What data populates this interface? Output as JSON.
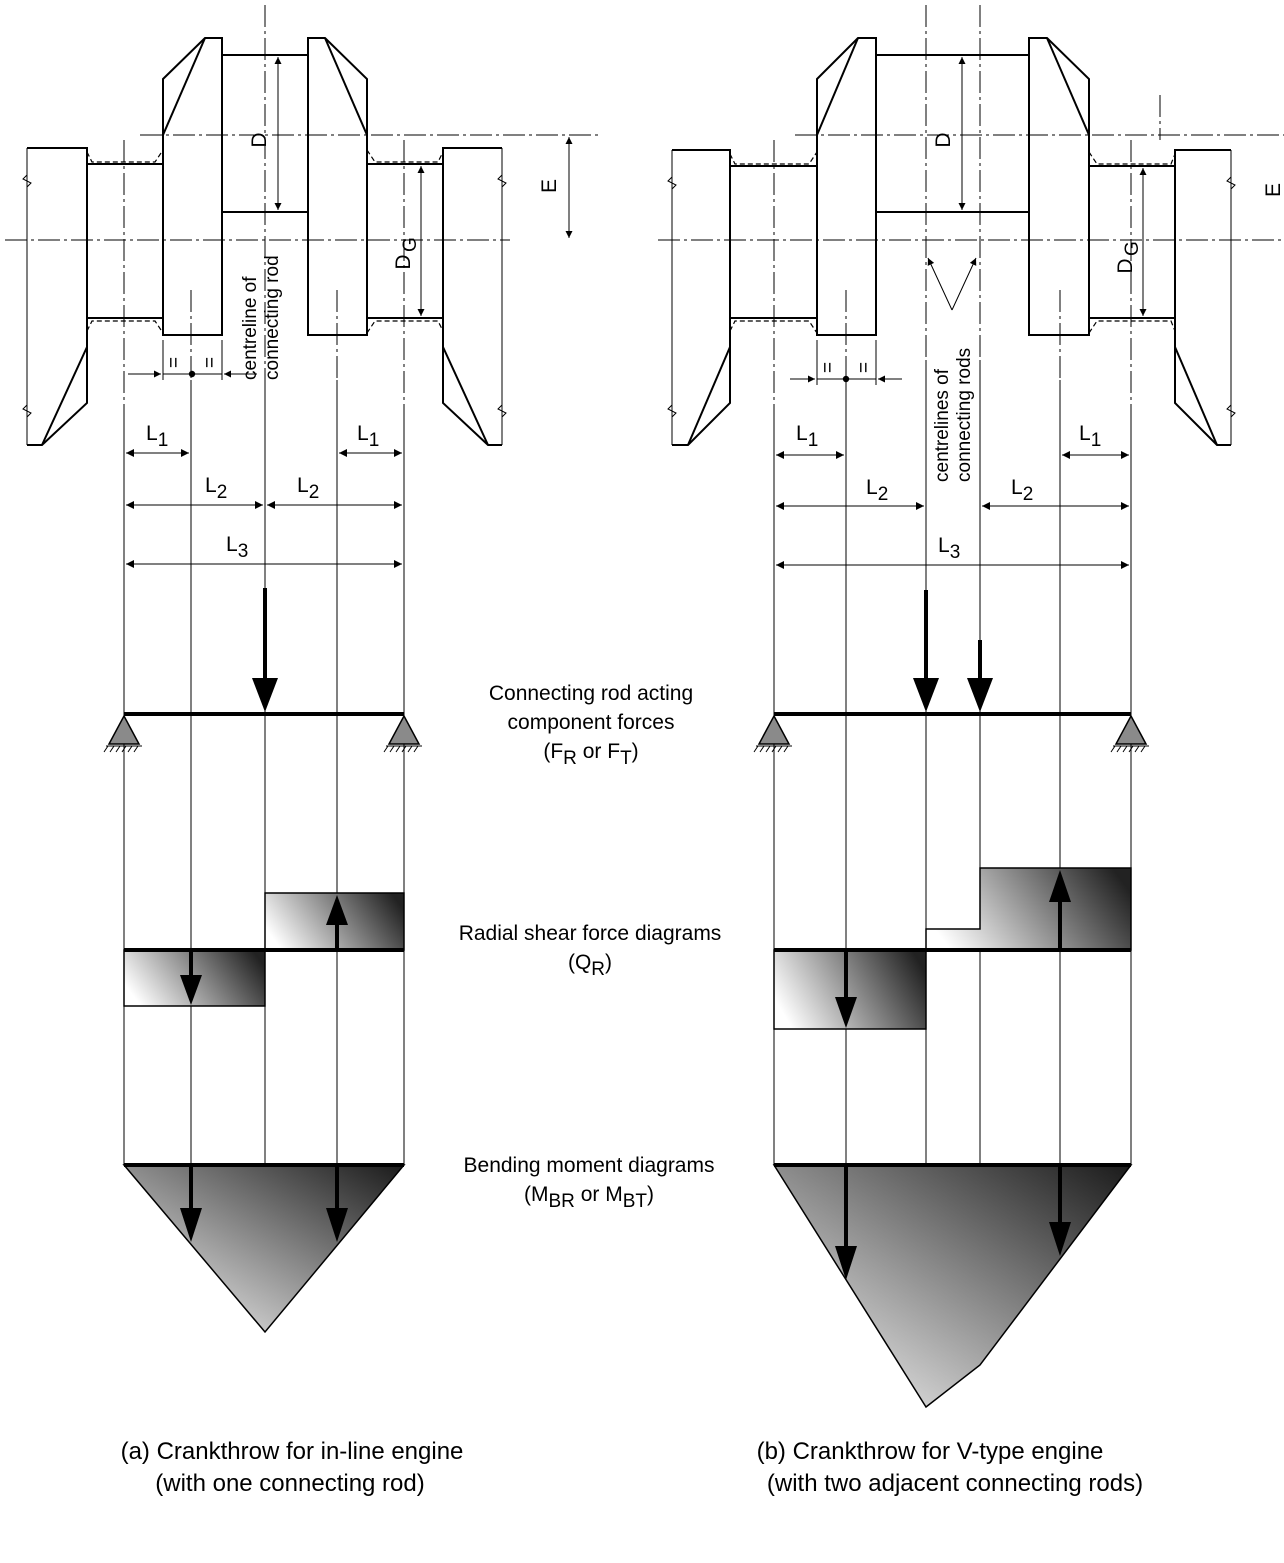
{
  "dims": {
    "D": "D",
    "E": "E",
    "DG_main": "D",
    "DG_sub": "G",
    "L": "L",
    "sub1": "1",
    "sub2": "2",
    "sub3": "3",
    "eq": "="
  },
  "left": {
    "centreline_1": "centreline of",
    "centreline_2": "connecting rod",
    "caption_1": "(a) Crankthrow for in-line engine",
    "caption_2": "(with one connecting rod)"
  },
  "right": {
    "centreline_1": "centrelines of",
    "centreline_2": "connecting rods",
    "caption_1": "(b) Crankthrow for V-type engine",
    "caption_2": "(with two adjacent connecting rods)"
  },
  "middle": {
    "forces_1": "Connecting rod acting",
    "forces_2": "component forces",
    "forces_3a": "(F",
    "forces_3b": "R",
    "forces_3c": " or F",
    "forces_3d": "T",
    "forces_3e": ")",
    "shear_1": "Radial shear force diagrams",
    "shear_2a": "(Q",
    "shear_2b": "R",
    "shear_2c": ")",
    "moment_1": "Bending moment diagrams",
    "moment_2a": "(M",
    "moment_2b": "BR",
    "moment_2c": " or M",
    "moment_2d": "BT",
    "moment_2e": ")"
  },
  "colors": {
    "line": "#000000",
    "gradient_light": "#ffffff",
    "gradient_dark": "#1a1a1a",
    "support": "#8a8a8a"
  }
}
